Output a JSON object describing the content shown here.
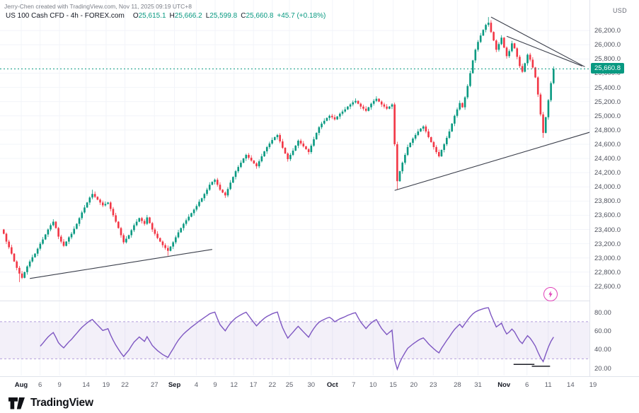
{
  "attribution": "Jerry-Chen created with TradingView.com, Nov 11, 2025 09:19 UTC+8",
  "legend": {
    "title": "US 100 Cash CFD - 4h - FOREX.com",
    "o_label": "O",
    "o_value": "25,615.1",
    "h_label": "H",
    "h_value": "25,666.2",
    "l_label": "L",
    "l_value": "25,599.8",
    "c_label": "C",
    "c_value": "25,660.8",
    "change": "+45.7 (+0.18%)"
  },
  "footer": {
    "logo_text": "TradingView"
  },
  "colors": {
    "up": "#089981",
    "down": "#f23645",
    "grid": "#f2f4f9",
    "rsi": "#7e57c2",
    "band_fill": "rgba(126,87,194,0.09)",
    "band_line": "#b39ddb",
    "trendline": "#3a3e4a",
    "annotation": "#1c1e26",
    "badge_bg": "#089981",
    "flash": "#e042b8"
  },
  "chart_data": {
    "type": "candlestick_with_rsi",
    "symbol": "US 100 Cash CFD",
    "interval": "4h",
    "exchange": "FOREX.com",
    "price_axis": {
      "currency": "USD",
      "min": 22400,
      "max": 26630,
      "labels": [
        "26,200.0",
        "26,000.0",
        "25,800.0",
        "25,600.0",
        "25,400.0",
        "25,200.0",
        "25,000.0",
        "24,800.0",
        "24,600.0",
        "24,400.0",
        "24,200.0",
        "24,000.0",
        "23,800.0",
        "23,600.0",
        "23,400.0",
        "23,200.0",
        "23,000.0",
        "22,800.0",
        "22,600.0"
      ]
    },
    "time_labels": [
      {
        "t": "Aug",
        "b": 1,
        "f": 0.036
      },
      {
        "t": "6",
        "f": 0.068
      },
      {
        "t": "9",
        "f": 0.101
      },
      {
        "t": "14",
        "f": 0.146
      },
      {
        "t": "19",
        "f": 0.18
      },
      {
        "t": "22",
        "f": 0.212
      },
      {
        "t": "27",
        "f": 0.262
      },
      {
        "t": "Sep",
        "b": 1,
        "f": 0.296
      },
      {
        "t": "4",
        "f": 0.333
      },
      {
        "t": "9",
        "f": 0.365
      },
      {
        "t": "12",
        "f": 0.397
      },
      {
        "t": "17",
        "f": 0.43
      },
      {
        "t": "22",
        "f": 0.462
      },
      {
        "t": "25",
        "f": 0.491
      },
      {
        "t": "30",
        "f": 0.528
      },
      {
        "t": "Oct",
        "b": 1,
        "f": 0.564
      },
      {
        "t": "7",
        "f": 0.6
      },
      {
        "t": "10",
        "f": 0.633
      },
      {
        "t": "15",
        "f": 0.667
      },
      {
        "t": "20",
        "f": 0.702
      },
      {
        "t": "23",
        "f": 0.735
      },
      {
        "t": "28",
        "f": 0.776
      },
      {
        "t": "31",
        "f": 0.811
      },
      {
        "t": "Nov",
        "b": 1,
        "f": 0.855
      },
      {
        "t": "6",
        "f": 0.894
      },
      {
        "t": "11",
        "f": 0.93
      },
      {
        "t": "14",
        "f": 0.968
      },
      {
        "t": "19",
        "f": 1.006
      }
    ],
    "last_price": 25660.8,
    "last_price_label": "25,660.8",
    "first_open": 23400,
    "closes": [
      23340,
      23230,
      23150,
      23060,
      22950,
      22860,
      22780,
      22720,
      22800,
      22880,
      22950,
      23010,
      23060,
      23130,
      23200,
      23260,
      23330,
      23400,
      23460,
      23510,
      23420,
      23300,
      23230,
      23170,
      23230,
      23290,
      23340,
      23410,
      23480,
      23560,
      23640,
      23710,
      23780,
      23850,
      23900,
      23860,
      23820,
      23780,
      23740,
      23760,
      23780,
      23690,
      23600,
      23510,
      23420,
      23320,
      23220,
      23270,
      23320,
      23390,
      23460,
      23510,
      23560,
      23520,
      23480,
      23570,
      23490,
      23400,
      23340,
      23280,
      23230,
      23180,
      23140,
      23100,
      23160,
      23220,
      23290,
      23360,
      23420,
      23480,
      23530,
      23580,
      23630,
      23680,
      23730,
      23790,
      23840,
      23900,
      23960,
      24030,
      24070,
      24100,
      24030,
      23960,
      23920,
      23880,
      23970,
      24060,
      24140,
      24220,
      24280,
      24340,
      24400,
      24450,
      24410,
      24370,
      24330,
      24290,
      24360,
      24430,
      24500,
      24560,
      24610,
      24660,
      24700,
      24730,
      24640,
      24550,
      24470,
      24390,
      24450,
      24510,
      24580,
      24650,
      24610,
      24570,
      24530,
      24490,
      24580,
      24670,
      24760,
      24840,
      24890,
      24930,
      24970,
      25000,
      24980,
      24950,
      24990,
      25030,
      25060,
      25090,
      25130,
      25160,
      25190,
      25210,
      25170,
      25130,
      25100,
      25070,
      25120,
      25170,
      25210,
      25240,
      25200,
      25160,
      25130,
      25100,
      25130,
      25160,
      24600,
      24080,
      24220,
      24340,
      24450,
      24560,
      24620,
      24680,
      24730,
      24780,
      24820,
      24850,
      24780,
      24700,
      24630,
      24560,
      24490,
      24430,
      24520,
      24600,
      24690,
      24780,
      24890,
      25000,
      25090,
      25180,
      25120,
      25260,
      25420,
      25600,
      25780,
      25930,
      26040,
      26130,
      26210,
      26280,
      26310,
      26180,
      26060,
      25930,
      26010,
      26100,
      25960,
      25840,
      25910,
      26020,
      25950,
      25830,
      25700,
      25620,
      25740,
      25860,
      25790,
      25680,
      25540,
      25300,
      25020,
      24760,
      24980,
      25220,
      25460,
      25660.8
    ],
    "wick_overrides": {
      "6": {
        "low": 22660
      },
      "34": {
        "high": 23960
      },
      "63": {
        "low": 23030
      },
      "151": {
        "low": 23960
      },
      "186": {
        "high": 26390
      },
      "207": {
        "low": 24690
      }
    },
    "trendlines": [
      {
        "i1": 10,
        "p1": 22710,
        "i2": 80,
        "p2": 23120
      },
      {
        "i1": 150,
        "p1": 23950,
        "i2": 225,
        "p2": 24770
      },
      {
        "i1": 187,
        "p1": 26390,
        "i2": 223,
        "p2": 25690
      },
      {
        "i1": 193,
        "p1": 26120,
        "i2": 222,
        "p2": 25700
      }
    ],
    "rsi": {
      "period": 14,
      "upper_band": 70,
      "lower_band": 30,
      "display_range": [
        12,
        92
      ],
      "axis_labels": [
        "80.00",
        "60.00",
        "40.00",
        "20.00"
      ],
      "annotations": [
        {
          "i1": 196,
          "i2": 204,
          "value": 24
        },
        {
          "i1": 203,
          "i2": 210,
          "value": 22
        }
      ]
    }
  }
}
